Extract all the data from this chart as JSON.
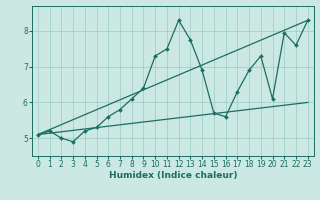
{
  "xlabel": "Humidex (Indice chaleur)",
  "ylabel": "",
  "bg_color": "#cce8e2",
  "grid_color": "#99ccc4",
  "line_color": "#1a6e62",
  "marker": "D",
  "marker_size": 2.0,
  "xlim": [
    -0.5,
    23.5
  ],
  "ylim": [
    4.5,
    8.7
  ],
  "xticks": [
    0,
    1,
    2,
    3,
    4,
    5,
    6,
    7,
    8,
    9,
    10,
    11,
    12,
    13,
    14,
    15,
    16,
    17,
    18,
    19,
    20,
    21,
    22,
    23
  ],
  "yticks": [
    5,
    6,
    7,
    8
  ],
  "series": [
    [
      0,
      5.1
    ],
    [
      1,
      5.2
    ],
    [
      2,
      5.0
    ],
    [
      3,
      4.9
    ],
    [
      4,
      5.2
    ],
    [
      5,
      5.3
    ],
    [
      6,
      5.6
    ],
    [
      7,
      5.8
    ],
    [
      8,
      6.1
    ],
    [
      9,
      6.4
    ],
    [
      10,
      7.3
    ],
    [
      11,
      7.5
    ],
    [
      12,
      8.3
    ],
    [
      13,
      7.75
    ],
    [
      14,
      6.9
    ],
    [
      15,
      5.7
    ],
    [
      16,
      5.6
    ],
    [
      17,
      6.3
    ],
    [
      18,
      6.9
    ],
    [
      19,
      7.3
    ],
    [
      20,
      6.1
    ],
    [
      21,
      7.95
    ],
    [
      22,
      7.6
    ],
    [
      23,
      8.3
    ]
  ],
  "line2": [
    [
      0,
      5.1
    ],
    [
      23,
      8.3
    ]
  ],
  "line3": [
    [
      0,
      5.1
    ],
    [
      23,
      6.0
    ]
  ],
  "tick_fontsize": 5.5,
  "xlabel_fontsize": 6.5,
  "linewidth": 0.9
}
